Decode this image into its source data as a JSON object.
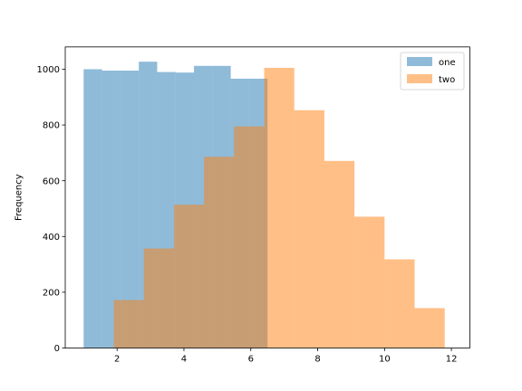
{
  "chart_data": {
    "type": "histogram",
    "title": "",
    "xlabel": "",
    "ylabel": "Frequency",
    "xlim": [
      0.45,
      12.55
    ],
    "ylim": [
      0,
      1080
    ],
    "xticks": [
      2,
      4,
      6,
      8,
      10,
      12
    ],
    "yticks": [
      0,
      200,
      400,
      600,
      800,
      1000
    ],
    "grid": false,
    "legend_position": "top-right",
    "opacity": 0.5,
    "series": [
      {
        "name": "one",
        "color": "#1f77b4",
        "bin_edges": [
          1.0,
          1.55,
          2.1,
          2.65,
          3.2,
          3.75,
          4.3,
          4.85,
          5.4,
          5.95,
          6.5
        ],
        "values": [
          1000,
          995,
          995,
          1027,
          990,
          988,
          1012,
          1012,
          966,
          966
        ]
      },
      {
        "name": "two",
        "color": "#ff7f0e",
        "bin_edges": [
          1.9,
          2.8,
          3.7,
          4.6,
          5.5,
          6.4,
          7.3,
          8.2,
          9.1,
          10.0,
          10.9,
          11.8
        ],
        "values": [
          172,
          357,
          514,
          686,
          795,
          1005,
          853,
          671,
          471,
          318,
          143
        ]
      }
    ]
  }
}
